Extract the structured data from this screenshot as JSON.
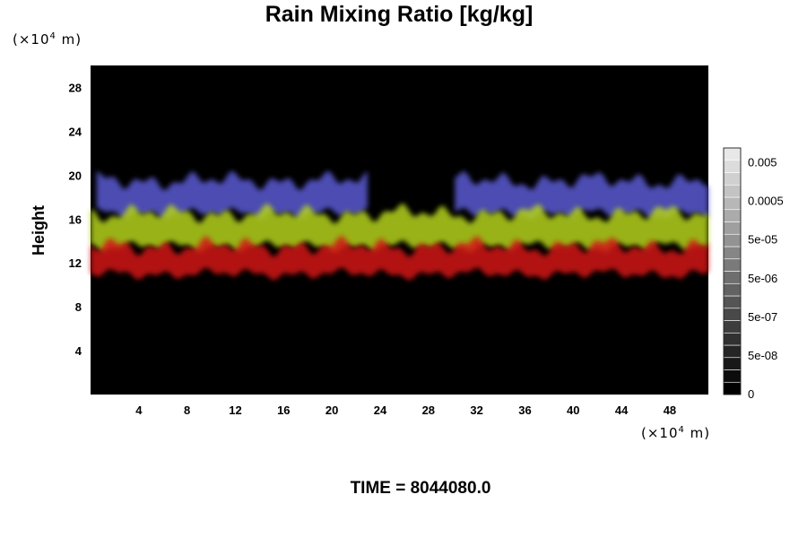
{
  "chart_data": {
    "type": "heatmap",
    "title": "Rain Mixing Ratio [kg/kg]",
    "ylabel": "Height",
    "x_unit": {
      "base": "(×10",
      "exp": "4",
      "rest": " m)"
    },
    "y_unit": {
      "base": "(×10",
      "exp": "4",
      "rest": " m)"
    },
    "xlim": [
      0,
      51.2
    ],
    "ylim": [
      0,
      30
    ],
    "x_ticks": [
      "4",
      "8",
      "12",
      "16",
      "20",
      "24",
      "28",
      "32",
      "36",
      "40",
      "44",
      "48"
    ],
    "y_ticks": [
      "4",
      "8",
      "12",
      "16",
      "20",
      "24",
      "28"
    ],
    "colorbar": {
      "labels": [
        "0",
        "5e-08",
        "5e-07",
        "5e-06",
        "5e-05",
        "0.0005",
        "0.005"
      ],
      "levels": 20
    },
    "background_color": "#000000",
    "layers": [
      {
        "color": "#5a5ad2",
        "y_range": [
          16.5,
          19.5
        ],
        "x_extent": [
          0.5,
          51.2
        ],
        "gaps": [
          [
            23,
            30
          ]
        ]
      },
      {
        "color": "#b4d21e",
        "y_range": [
          13.5,
          16.5
        ],
        "x_extent": [
          0,
          51.2
        ]
      },
      {
        "color": "#d21414",
        "y_range": [
          11.0,
          13.5
        ],
        "x_extent": [
          0,
          51.2
        ]
      }
    ],
    "grid": false
  },
  "footer": {
    "time_label": "TIME = 8044080.0"
  }
}
